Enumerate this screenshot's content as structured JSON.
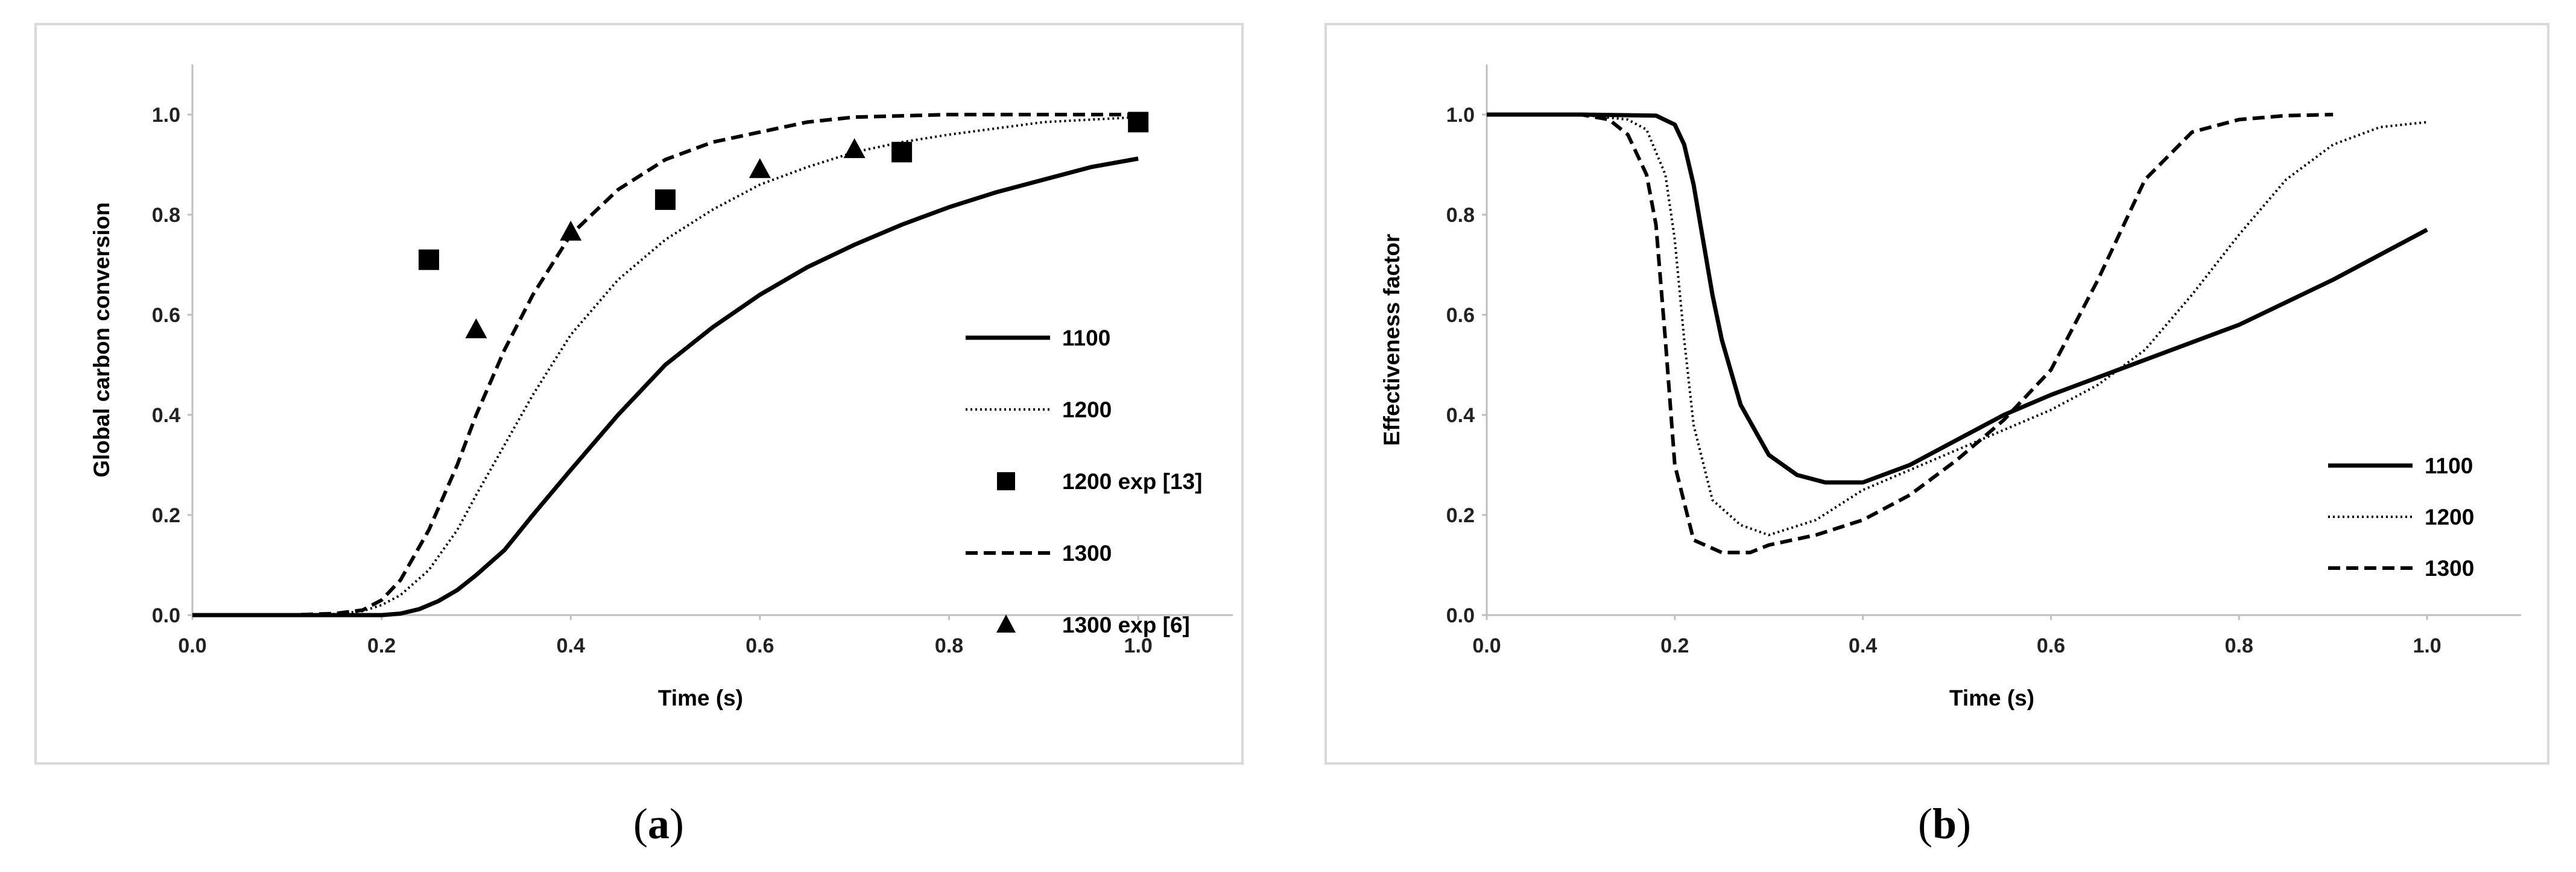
{
  "chart_data": [
    {
      "type": "line",
      "panel": "a",
      "caption": "a",
      "xlabel": "Time (s)",
      "ylabel": "Global carbon conversion",
      "xlim": [
        0,
        1.1
      ],
      "ylim": [
        0,
        1.1
      ],
      "xticks": [
        "0.0",
        "0.2",
        "0.4",
        "0.6",
        "0.8",
        "1.0"
      ],
      "yticks": [
        "0.0",
        "0.2",
        "0.4",
        "0.6",
        "0.8",
        "1.0"
      ],
      "grid": false,
      "legend_position": "right",
      "series": [
        {
          "name": "1100",
          "style": "solid",
          "x": [
            0,
            0.1,
            0.2,
            0.22,
            0.24,
            0.26,
            0.28,
            0.3,
            0.33,
            0.36,
            0.4,
            0.45,
            0.5,
            0.55,
            0.6,
            0.65,
            0.7,
            0.75,
            0.8,
            0.85,
            0.9,
            0.95,
            1.0
          ],
          "y": [
            0,
            0,
            0,
            0.003,
            0.012,
            0.028,
            0.05,
            0.08,
            0.13,
            0.2,
            0.29,
            0.4,
            0.5,
            0.575,
            0.64,
            0.695,
            0.74,
            0.78,
            0.815,
            0.845,
            0.87,
            0.895,
            0.912
          ]
        },
        {
          "name": "1200",
          "style": "dotted",
          "x": [
            0,
            0.1,
            0.15,
            0.18,
            0.2,
            0.22,
            0.25,
            0.28,
            0.3,
            0.33,
            0.36,
            0.4,
            0.45,
            0.5,
            0.55,
            0.6,
            0.65,
            0.7,
            0.75,
            0.8,
            0.9,
            1.0
          ],
          "y": [
            0,
            0,
            0.002,
            0.008,
            0.02,
            0.04,
            0.09,
            0.17,
            0.24,
            0.34,
            0.44,
            0.56,
            0.67,
            0.75,
            0.81,
            0.86,
            0.895,
            0.925,
            0.945,
            0.96,
            0.985,
            0.995
          ]
        },
        {
          "name": "1200 exp [13]",
          "style": "square",
          "x": [
            0.25,
            0.5,
            0.75,
            1.0
          ],
          "y": [
            0.71,
            0.83,
            0.925,
            0.985
          ]
        },
        {
          "name": "1300",
          "style": "dashed",
          "x": [
            0,
            0.1,
            0.15,
            0.18,
            0.2,
            0.22,
            0.25,
            0.28,
            0.3,
            0.33,
            0.36,
            0.4,
            0.45,
            0.5,
            0.55,
            0.6,
            0.65,
            0.7,
            0.8,
            0.9,
            1.0
          ],
          "y": [
            0,
            0,
            0.003,
            0.01,
            0.03,
            0.07,
            0.17,
            0.3,
            0.4,
            0.53,
            0.64,
            0.76,
            0.85,
            0.91,
            0.945,
            0.965,
            0.985,
            0.995,
            1.0,
            1.0,
            1.0
          ]
        },
        {
          "name": "1300 exp [6]",
          "style": "triangle",
          "x": [
            0.3,
            0.4,
            0.6,
            0.7
          ],
          "y": [
            0.57,
            0.765,
            0.89,
            0.93
          ]
        }
      ]
    },
    {
      "type": "line",
      "panel": "b",
      "caption": "b",
      "xlabel": "Time (s)",
      "ylabel": "Effectiveness  factor",
      "xlim": [
        0,
        1.1
      ],
      "ylim": [
        0,
        1.1
      ],
      "xticks": [
        "0.0",
        "0.2",
        "0.4",
        "0.6",
        "0.8",
        "1.0"
      ],
      "yticks": [
        "0.0",
        "0.2",
        "0.4",
        "0.6",
        "0.8",
        "1.0"
      ],
      "grid": false,
      "legend_position": "right",
      "series": [
        {
          "name": "1100",
          "style": "solid",
          "x": [
            0,
            0.1,
            0.18,
            0.2,
            0.21,
            0.22,
            0.23,
            0.24,
            0.25,
            0.27,
            0.3,
            0.33,
            0.36,
            0.4,
            0.45,
            0.5,
            0.55,
            0.6,
            0.65,
            0.7,
            0.8,
            0.9,
            1.0
          ],
          "y": [
            1.0,
            1.0,
            0.998,
            0.98,
            0.94,
            0.86,
            0.75,
            0.64,
            0.55,
            0.42,
            0.32,
            0.28,
            0.265,
            0.265,
            0.3,
            0.35,
            0.4,
            0.44,
            0.475,
            0.51,
            0.58,
            0.67,
            0.77
          ]
        },
        {
          "name": "1200",
          "style": "dotted",
          "x": [
            0,
            0.1,
            0.15,
            0.17,
            0.19,
            0.2,
            0.21,
            0.22,
            0.24,
            0.27,
            0.3,
            0.35,
            0.4,
            0.45,
            0.5,
            0.55,
            0.6,
            0.65,
            0.7,
            0.75,
            0.8,
            0.85,
            0.9,
            0.95,
            1.0
          ],
          "y": [
            1.0,
            1.0,
            0.99,
            0.97,
            0.88,
            0.75,
            0.55,
            0.38,
            0.23,
            0.18,
            0.16,
            0.19,
            0.25,
            0.29,
            0.33,
            0.37,
            0.41,
            0.46,
            0.53,
            0.64,
            0.76,
            0.87,
            0.94,
            0.975,
            0.985
          ]
        },
        {
          "name": "1300",
          "style": "dashed",
          "x": [
            0,
            0.1,
            0.13,
            0.15,
            0.17,
            0.18,
            0.19,
            0.2,
            0.22,
            0.25,
            0.28,
            0.3,
            0.35,
            0.4,
            0.45,
            0.5,
            0.55,
            0.6,
            0.65,
            0.7,
            0.75,
            0.8,
            0.85,
            0.9
          ],
          "y": [
            1.0,
            1.0,
            0.99,
            0.96,
            0.88,
            0.78,
            0.55,
            0.3,
            0.15,
            0.125,
            0.125,
            0.14,
            0.16,
            0.19,
            0.24,
            0.31,
            0.39,
            0.49,
            0.67,
            0.87,
            0.965,
            0.99,
            0.998,
            1.0
          ]
        }
      ]
    }
  ]
}
